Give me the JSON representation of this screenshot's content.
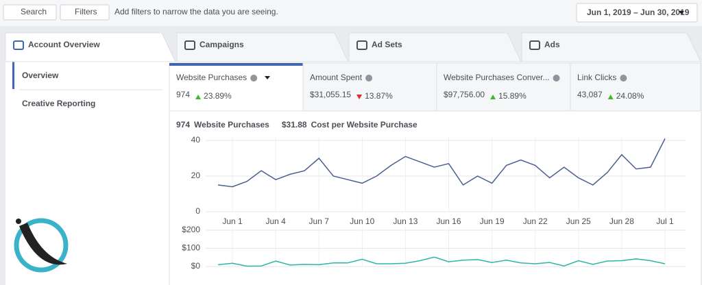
{
  "toolbar": {
    "search": "Search",
    "filters": "Filters",
    "filter_hint": "Add filters to narrow the data you are seeing.",
    "date_range": "Jun 1, 2019 – Jun 30, 2019"
  },
  "tabs": [
    "Account Overview",
    "Campaigns",
    "Ad Sets",
    "Ads"
  ],
  "sidebar": [
    "Overview",
    "Creative Reporting"
  ],
  "metrics": [
    {
      "label": "Website Purchases",
      "value": "974",
      "change": "23.89%",
      "direction": "up"
    },
    {
      "label": "Amount Spent",
      "value": "$31,055.15",
      "change": "13.87%",
      "direction": "down"
    },
    {
      "label": "Website Purchases Conver...",
      "value": "$97,756.00",
      "change": "15.89%",
      "direction": "up"
    },
    {
      "label": "Link Clicks",
      "value": "43,087",
      "change": "24.08%",
      "direction": "up"
    }
  ],
  "legend": [
    {
      "value": "974",
      "label": "Website Purchases",
      "color": "#4a5f8f"
    },
    {
      "value": "$31.88",
      "label": "Cost per Website Purchase",
      "color": "#2bb5a6"
    }
  ],
  "charts": [
    {
      "type": "line",
      "color": "#4a5f8f",
      "categories": [
        null,
        "Jun 1",
        null,
        null,
        "Jun 4",
        null,
        null,
        "Jun 7",
        null,
        null,
        "Jun 10",
        null,
        null,
        "Jun 13",
        null,
        null,
        "Jun 16",
        null,
        null,
        "Jun 19",
        null,
        null,
        "Jun 22",
        null,
        null,
        "Jun 25",
        null,
        null,
        "Jun 28",
        null,
        null,
        "Jul 1"
      ],
      "values": [
        15,
        14,
        17,
        23,
        18,
        21,
        23,
        30,
        20,
        18,
        16,
        20,
        26,
        31,
        28,
        25,
        27,
        15,
        20,
        16,
        26,
        29,
        26,
        19,
        25,
        19,
        15,
        22,
        32,
        24,
        25,
        41
      ],
      "ylim": [
        0,
        40
      ],
      "yticks": [
        0,
        20,
        40
      ],
      "grid": true
    },
    {
      "type": "line",
      "color": "#2bb5a6",
      "values": [
        10,
        18,
        2,
        3,
        30,
        8,
        12,
        10,
        20,
        20,
        40,
        15,
        15,
        18,
        32,
        52,
        26,
        35,
        38,
        22,
        35,
        20,
        15,
        22,
        3,
        32,
        12,
        30,
        32,
        42,
        32,
        15
      ],
      "ylim": [
        0,
        200
      ],
      "yticks": [
        {
          "value": 0,
          "label": "$0"
        },
        {
          "value": 100,
          "label": "$100"
        },
        {
          "value": 200,
          "label": "$200"
        }
      ],
      "grid": true
    }
  ]
}
